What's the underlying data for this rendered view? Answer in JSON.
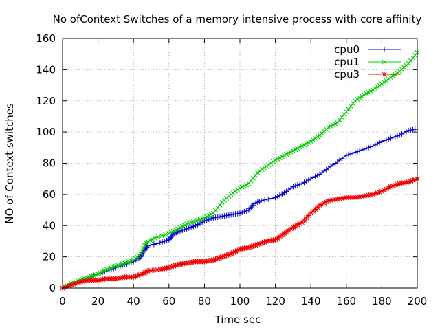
{
  "chart_data": {
    "type": "line",
    "title": "No ofContext Switches of a memory intensive process with core affinity",
    "xlabel": "Time sec",
    "ylabel": "NO of Context switches",
    "xlim": [
      0,
      200
    ],
    "ylim": [
      0,
      160
    ],
    "xticks": [
      0,
      20,
      40,
      60,
      80,
      100,
      120,
      140,
      160,
      180,
      200
    ],
    "yticks": [
      0,
      20,
      40,
      60,
      80,
      100,
      120,
      140,
      160
    ],
    "grid": true,
    "legend_position": "top-right",
    "series": [
      {
        "name": "cpu0",
        "color": "#0000cc",
        "marker": "plus",
        "points": [
          [
            0,
            0
          ],
          [
            5,
            2
          ],
          [
            10,
            4
          ],
          [
            15,
            7
          ],
          [
            20,
            9
          ],
          [
            25,
            11
          ],
          [
            30,
            13
          ],
          [
            35,
            15
          ],
          [
            40,
            17
          ],
          [
            44,
            20
          ],
          [
            46,
            24
          ],
          [
            48,
            27
          ],
          [
            55,
            29
          ],
          [
            60,
            31
          ],
          [
            62,
            34
          ],
          [
            65,
            36
          ],
          [
            70,
            38
          ],
          [
            75,
            40
          ],
          [
            80,
            43
          ],
          [
            85,
            45
          ],
          [
            90,
            46
          ],
          [
            95,
            47
          ],
          [
            100,
            48
          ],
          [
            105,
            50
          ],
          [
            108,
            54
          ],
          [
            112,
            56
          ],
          [
            120,
            58
          ],
          [
            125,
            61
          ],
          [
            130,
            65
          ],
          [
            135,
            67
          ],
          [
            140,
            70
          ],
          [
            145,
            73
          ],
          [
            150,
            77
          ],
          [
            155,
            81
          ],
          [
            160,
            85
          ],
          [
            165,
            87
          ],
          [
            170,
            89
          ],
          [
            175,
            91
          ],
          [
            180,
            94
          ],
          [
            185,
            96
          ],
          [
            190,
            98
          ],
          [
            195,
            101
          ],
          [
            200,
            102
          ]
        ]
      },
      {
        "name": "cpu1",
        "color": "#00cc00",
        "marker": "cross",
        "points": [
          [
            0,
            0
          ],
          [
            5,
            3
          ],
          [
            10,
            5
          ],
          [
            15,
            7
          ],
          [
            20,
            9
          ],
          [
            25,
            12
          ],
          [
            30,
            14
          ],
          [
            35,
            16
          ],
          [
            40,
            18
          ],
          [
            44,
            22
          ],
          [
            47,
            29
          ],
          [
            52,
            32
          ],
          [
            60,
            35
          ],
          [
            65,
            38
          ],
          [
            70,
            41
          ],
          [
            75,
            43
          ],
          [
            80,
            45
          ],
          [
            85,
            48
          ],
          [
            90,
            55
          ],
          [
            95,
            60
          ],
          [
            100,
            64
          ],
          [
            105,
            67
          ],
          [
            110,
            74
          ],
          [
            115,
            78
          ],
          [
            120,
            82
          ],
          [
            125,
            85
          ],
          [
            130,
            88
          ],
          [
            135,
            91
          ],
          [
            140,
            94
          ],
          [
            145,
            98
          ],
          [
            150,
            103
          ],
          [
            155,
            106
          ],
          [
            160,
            113
          ],
          [
            165,
            120
          ],
          [
            170,
            124
          ],
          [
            175,
            127
          ],
          [
            180,
            131
          ],
          [
            185,
            135
          ],
          [
            190,
            139
          ],
          [
            195,
            144
          ],
          [
            200,
            151
          ]
        ]
      },
      {
        "name": "cpu3",
        "color": "#ee0000",
        "marker": "star",
        "points": [
          [
            0,
            0
          ],
          [
            5,
            2
          ],
          [
            10,
            4
          ],
          [
            15,
            5
          ],
          [
            20,
            5
          ],
          [
            25,
            6
          ],
          [
            30,
            6
          ],
          [
            35,
            7
          ],
          [
            40,
            7
          ],
          [
            45,
            9
          ],
          [
            48,
            11
          ],
          [
            55,
            12
          ],
          [
            60,
            13
          ],
          [
            65,
            15
          ],
          [
            70,
            16
          ],
          [
            75,
            17
          ],
          [
            80,
            17
          ],
          [
            85,
            18
          ],
          [
            90,
            20
          ],
          [
            95,
            22
          ],
          [
            100,
            25
          ],
          [
            105,
            26
          ],
          [
            110,
            28
          ],
          [
            115,
            30
          ],
          [
            120,
            31
          ],
          [
            125,
            35
          ],
          [
            130,
            39
          ],
          [
            135,
            42
          ],
          [
            140,
            48
          ],
          [
            145,
            53
          ],
          [
            150,
            56
          ],
          [
            155,
            57
          ],
          [
            160,
            58
          ],
          [
            165,
            58
          ],
          [
            170,
            59
          ],
          [
            175,
            60
          ],
          [
            180,
            62
          ],
          [
            185,
            65
          ],
          [
            190,
            67
          ],
          [
            195,
            68
          ],
          [
            200,
            70
          ]
        ]
      }
    ]
  }
}
